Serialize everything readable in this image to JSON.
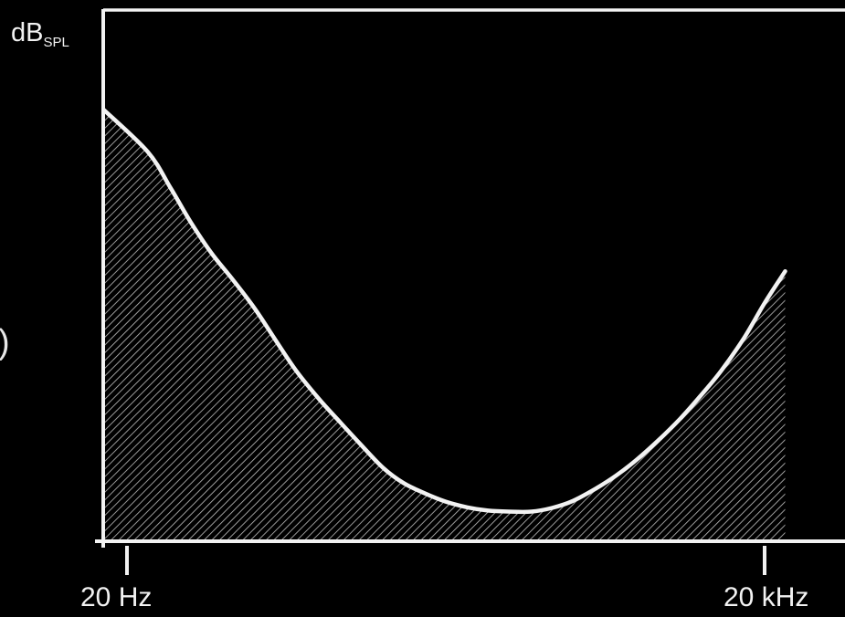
{
  "chart_data": {
    "type": "area",
    "title": "",
    "xlabel": "",
    "ylabel": {
      "base": "dB",
      "subscript": "SPL"
    },
    "x_scale": "log",
    "x_ticks": [
      {
        "value": 20,
        "label": "20 Hz"
      },
      {
        "value": 20000,
        "label": "20 kHz"
      }
    ],
    "y_ticks": [],
    "grid": false,
    "legend": "none",
    "fill_pattern": "diagonal-hatch",
    "colors": {
      "background": "#000000",
      "line": "#f2f2f2",
      "axes": "#f2f2f2",
      "hatch": "#bfbfbf"
    },
    "series": [
      {
        "x": [
          20,
          25,
          32,
          40,
          50,
          63,
          80,
          100,
          125,
          160,
          200,
          250,
          320,
          400,
          500,
          630,
          800,
          1000,
          1250,
          1600,
          2000,
          2500,
          3200,
          4000,
          5000,
          6300,
          8000,
          10000,
          12500,
          16000,
          20000,
          25000
        ],
        "y": [
          80.9,
          73.6,
          66.8,
          60.2,
          54.4,
          49.4,
          43.9,
          38.0,
          32.2,
          26.9,
          22.6,
          18.4,
          13.9,
          11.0,
          9.1,
          7.5,
          6.4,
          5.8,
          5.6,
          5.6,
          6.3,
          7.6,
          9.9,
          12.4,
          15.4,
          19.0,
          23.1,
          27.5,
          32.2,
          38.4,
          45.0,
          51.0
        ]
      }
    ]
  },
  "partial_glyph": ")"
}
